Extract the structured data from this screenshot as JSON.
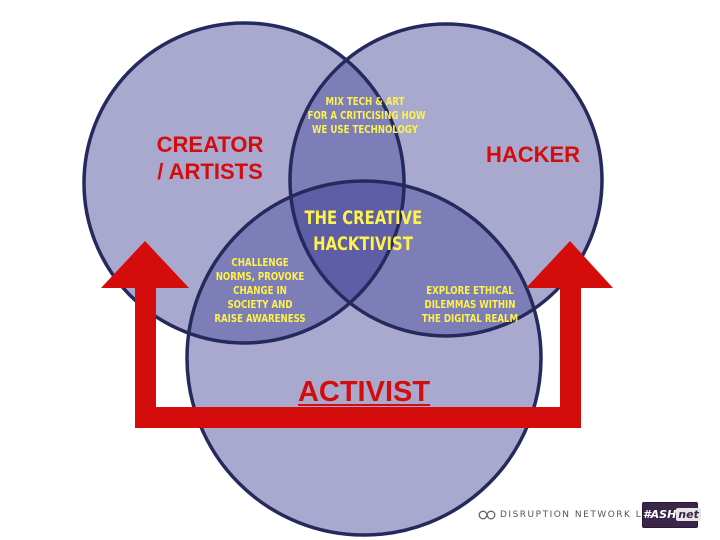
{
  "circles": {
    "creator": {
      "label": "CREATOR\n/ ARTISTS"
    },
    "hacker": {
      "label": "HACKER"
    },
    "activist": {
      "label": "ACTIVIST"
    }
  },
  "intersections": {
    "creator_hacker": "MIX TECH & ART\nFOR A CRITICISING HOW\nWE  USE TECHNOLOGY",
    "creator_activist": "CHALLENGE\nNORMS, PROVOKE\nCHANGE IN\nSOCIETY AND\nRAISE AWARENESS",
    "hacker_activist": "EXPLORE ETHICAL\nDILEMMAS WITHIN\nTHE DIGITAL REALM",
    "center": "THE CREATIVE\nHACKTIVIST"
  },
  "footer": {
    "brand": "DISRUPTION NETWORK LAB",
    "logo_prefix": "#ASH",
    "logo_suffix": "net"
  },
  "colors": {
    "circle_fill": "#a9a9cf",
    "circle_stroke": "#252a5c",
    "overlap2": "#7d7db8",
    "overlap3": "#5e5ea6",
    "red": "#d50c0c",
    "yellow": "#fff24a"
  },
  "icons": {
    "arrows": "up-arrow-icon",
    "brand": "link-icon"
  }
}
